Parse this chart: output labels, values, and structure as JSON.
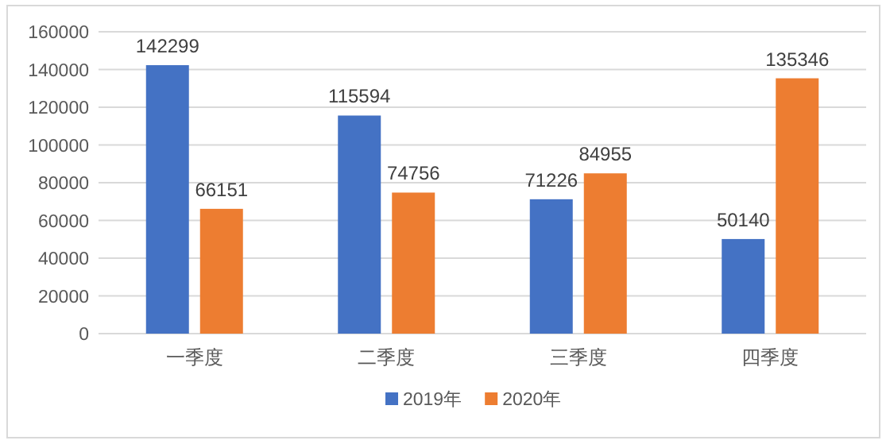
{
  "chart_data": {
    "type": "bar",
    "categories": [
      "一季度",
      "二季度",
      "三季度",
      "四季度"
    ],
    "series": [
      {
        "name": "2019年",
        "color": "#4472c4",
        "values": [
          142299,
          115594,
          71226,
          50140
        ]
      },
      {
        "name": "2020年",
        "color": "#ed7d31",
        "values": [
          66151,
          74756,
          84955,
          135346
        ]
      }
    ],
    "ylim": [
      0,
      160000
    ],
    "yticks": [
      0,
      20000,
      40000,
      60000,
      80000,
      100000,
      120000,
      140000,
      160000
    ],
    "grid": "y",
    "data_labels": true,
    "legend": "bottom"
  }
}
